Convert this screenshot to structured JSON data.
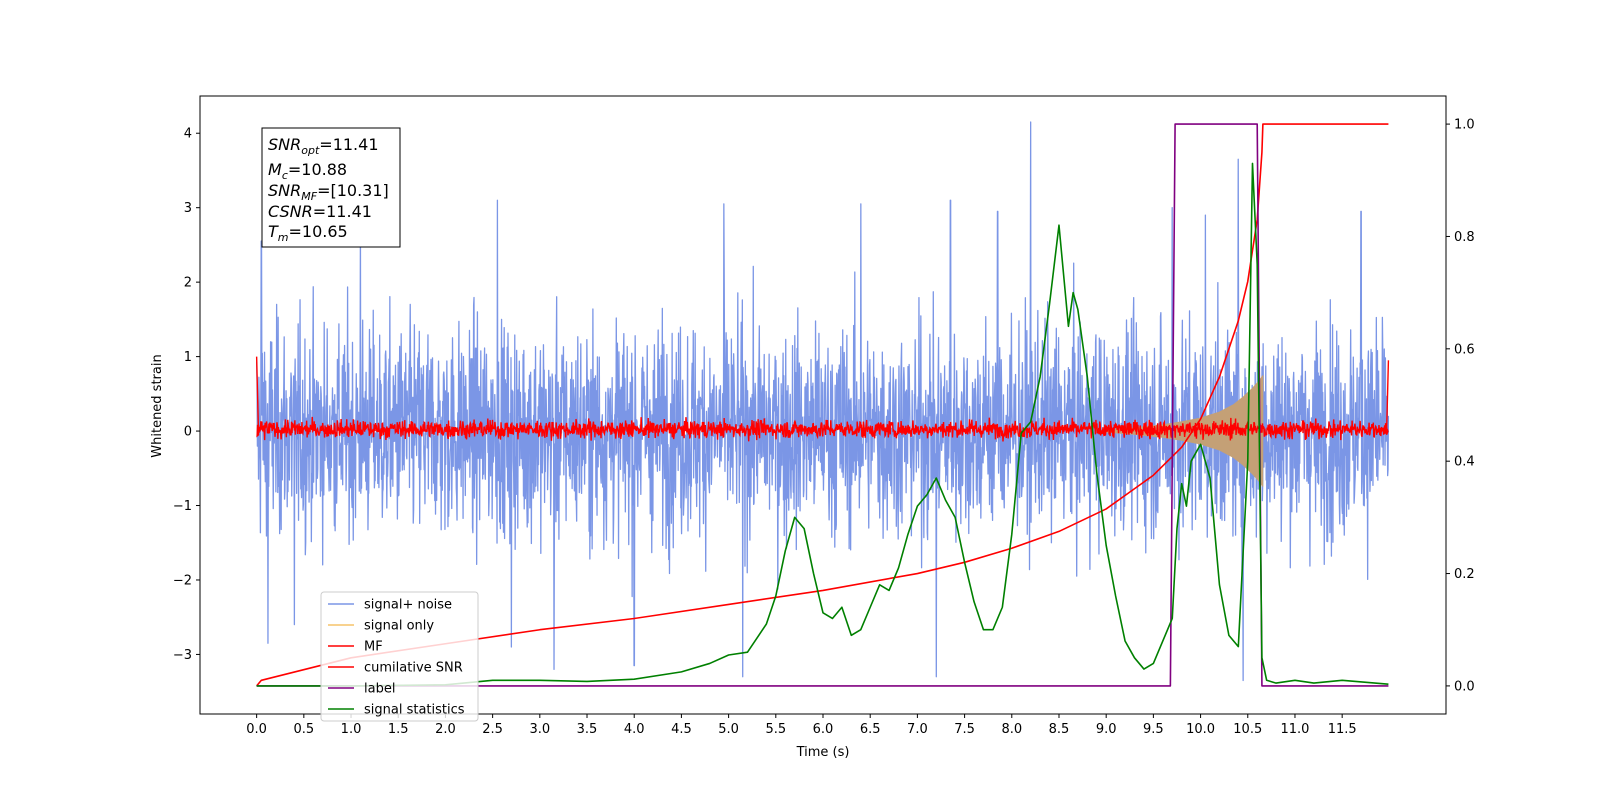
{
  "chart_data": {
    "type": "line",
    "xlabel": "Time (s)",
    "ylabel": "Whitened strain",
    "ylabel_right": "",
    "xlim": [
      -0.6,
      12.6
    ],
    "ylim": [
      -3.8,
      4.5
    ],
    "ylim_right": [
      -0.05,
      1.05
    ],
    "x_ticks": [
      "0.0",
      "0.5",
      "1.0",
      "1.5",
      "2.0",
      "2.5",
      "3.0",
      "3.5",
      "4.0",
      "4.5",
      "5.0",
      "5.5",
      "6.0",
      "6.5",
      "7.0",
      "7.5",
      "8.0",
      "8.5",
      "9.0",
      "9.5",
      "10.0",
      "10.5",
      "11.0",
      "11.5"
    ],
    "y_ticks_left": [
      "−3",
      "−2",
      "−1",
      "0",
      "1",
      "2",
      "3",
      "4"
    ],
    "y_ticks_right": [
      "0.0",
      "0.2",
      "0.4",
      "0.6",
      "0.8",
      "1.0"
    ],
    "grid": false,
    "legend_placement": "lower-left",
    "legend": [
      "signal+ noise",
      "signal only",
      "MF",
      "cumilative SNR",
      "label",
      "signal statistics"
    ],
    "annotation": {
      "snr_opt": {
        "base": "SNR",
        "sub": "opt",
        "value": "=11.41"
      },
      "mc": {
        "base": "M",
        "sub": "c",
        "value": "=10.88"
      },
      "snr_mf": {
        "base": "SNR",
        "sub": "MF",
        "value": "=[10.31]"
      },
      "csnr": {
        "base": "CSNR",
        "sub": "",
        "value": "=11.41"
      },
      "tm": {
        "base": "T",
        "sub": "m",
        "value": "=10.65"
      }
    },
    "series": [
      {
        "name": "signal+ noise",
        "axis": "left",
        "color": "#7b96e6",
        "kind": "noise",
        "x_range": [
          0.0,
          11.99
        ],
        "envelope_typical": [
          -1.6,
          1.6
        ],
        "spikes": [
          [
            0.05,
            2.55
          ],
          [
            0.12,
            -2.85
          ],
          [
            0.4,
            -2.6
          ],
          [
            1.1,
            2.75
          ],
          [
            2.55,
            3.1
          ],
          [
            2.7,
            -2.9
          ],
          [
            3.15,
            -3.2
          ],
          [
            4.0,
            -3.15
          ],
          [
            4.95,
            3.05
          ],
          [
            5.15,
            -3.3
          ],
          [
            6.4,
            3.05
          ],
          [
            7.2,
            -3.3
          ],
          [
            7.35,
            3.1
          ],
          [
            7.85,
            2.95
          ],
          [
            8.2,
            4.15
          ],
          [
            9.7,
            3.0
          ],
          [
            10.05,
            2.9
          ],
          [
            10.4,
            3.65
          ],
          [
            10.45,
            -3.35
          ],
          [
            11.7,
            2.95
          ]
        ]
      },
      {
        "name": "signal only",
        "axis": "left",
        "color": "#c4a076",
        "kind": "chirp",
        "x": [
          9.0,
          9.3,
          9.6,
          9.8,
          10.0,
          10.2,
          10.35,
          10.45,
          10.55,
          10.62,
          10.66
        ],
        "y_amplitude": [
          0.02,
          0.05,
          0.09,
          0.13,
          0.18,
          0.26,
          0.36,
          0.46,
          0.58,
          0.68,
          0.75
        ]
      },
      {
        "name": "MF",
        "axis": "left",
        "color": "#ff0000",
        "kind": "band",
        "x_range": [
          0.0,
          11.99
        ],
        "envelope_typical": [
          -0.13,
          0.18
        ],
        "edge_points": [
          [
            0.0,
            1.0
          ],
          [
            0.02,
            -0.05
          ],
          [
            11.97,
            -0.05
          ],
          [
            11.99,
            0.95
          ]
        ]
      },
      {
        "name": "cumilative SNR",
        "axis": "right",
        "color": "#ff0000",
        "x": [
          0.0,
          0.05,
          1.0,
          2.0,
          3.0,
          4.0,
          5.0,
          6.0,
          7.0,
          7.5,
          8.0,
          8.5,
          9.0,
          9.5,
          9.8,
          10.0,
          10.2,
          10.4,
          10.5,
          10.6,
          10.65,
          10.66,
          11.99
        ],
        "y": [
          0.0,
          0.01,
          0.05,
          0.075,
          0.1,
          0.12,
          0.145,
          0.17,
          0.2,
          0.22,
          0.245,
          0.275,
          0.315,
          0.375,
          0.425,
          0.475,
          0.55,
          0.65,
          0.72,
          0.83,
          0.95,
          1.0,
          1.0
        ]
      },
      {
        "name": "label",
        "axis": "right",
        "color": "#800080",
        "x": [
          0.0,
          9.68,
          9.73,
          10.6,
          10.65,
          11.99
        ],
        "y": [
          0.0,
          0.0,
          1.0,
          1.0,
          0.0,
          0.0
        ]
      },
      {
        "name": "signal statistics",
        "axis": "right",
        "color": "#008000",
        "x": [
          0.0,
          1.0,
          2.0,
          2.5,
          3.0,
          3.5,
          4.0,
          4.5,
          4.8,
          5.0,
          5.2,
          5.4,
          5.5,
          5.6,
          5.7,
          5.8,
          5.9,
          6.0,
          6.1,
          6.2,
          6.3,
          6.4,
          6.5,
          6.6,
          6.7,
          6.8,
          6.9,
          7.0,
          7.1,
          7.2,
          7.3,
          7.4,
          7.5,
          7.6,
          7.7,
          7.8,
          7.9,
          8.0,
          8.1,
          8.2,
          8.3,
          8.4,
          8.5,
          8.6,
          8.65,
          8.7,
          8.8,
          8.9,
          9.0,
          9.1,
          9.2,
          9.3,
          9.4,
          9.5,
          9.6,
          9.7,
          9.75,
          9.8,
          9.85,
          9.9,
          10.0,
          10.1,
          10.2,
          10.3,
          10.4,
          10.5,
          10.55,
          10.6,
          10.65,
          10.7,
          10.8,
          11.0,
          11.2,
          11.5,
          11.99
        ],
        "y": [
          0.0,
          0.0,
          0.002,
          0.01,
          0.01,
          0.008,
          0.012,
          0.025,
          0.04,
          0.055,
          0.06,
          0.11,
          0.16,
          0.24,
          0.3,
          0.28,
          0.2,
          0.13,
          0.12,
          0.14,
          0.09,
          0.1,
          0.14,
          0.18,
          0.17,
          0.21,
          0.27,
          0.32,
          0.34,
          0.37,
          0.33,
          0.3,
          0.22,
          0.15,
          0.1,
          0.1,
          0.14,
          0.27,
          0.45,
          0.47,
          0.55,
          0.68,
          0.82,
          0.64,
          0.7,
          0.67,
          0.55,
          0.38,
          0.25,
          0.16,
          0.08,
          0.05,
          0.03,
          0.04,
          0.08,
          0.12,
          0.28,
          0.36,
          0.32,
          0.4,
          0.43,
          0.37,
          0.18,
          0.09,
          0.07,
          0.4,
          0.93,
          0.75,
          0.05,
          0.01,
          0.005,
          0.01,
          0.005,
          0.01,
          0.003
        ]
      }
    ]
  }
}
